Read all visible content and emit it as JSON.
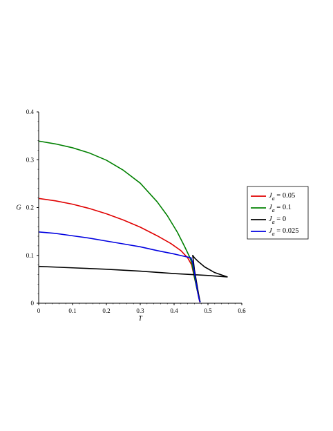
{
  "chart_data": {
    "type": "line",
    "xlabel": "T",
    "ylabel": "G",
    "xlim": [
      0,
      0.6
    ],
    "ylim": [
      0,
      0.4
    ],
    "xticks": [
      "0",
      "0.1",
      "0.2",
      "0.3",
      "0.4",
      "0.5",
      "0.6"
    ],
    "yticks": [
      "0",
      "0.1",
      "0.2",
      "0.3",
      "0.4"
    ],
    "grid": false,
    "legend_position": "right",
    "series": [
      {
        "name": "J_a = 0.05",
        "legend_var": "J",
        "legend_sub": "a",
        "legend_rest": " = 0.05",
        "color": "#e00000",
        "x": [
          0,
          0.05,
          0.1,
          0.15,
          0.2,
          0.25,
          0.3,
          0.35,
          0.39,
          0.42,
          0.44,
          0.452,
          0.458,
          0.466,
          0.472,
          0.476
        ],
        "y": [
          0.219,
          0.214,
          0.207,
          0.198,
          0.187,
          0.174,
          0.159,
          0.141,
          0.125,
          0.11,
          0.095,
          0.08,
          0.06,
          0.035,
          0.015,
          0.002
        ]
      },
      {
        "name": "J_a = 0.1",
        "legend_var": "J",
        "legend_sub": "a",
        "legend_rest": " = 0.1",
        "color": "#008000",
        "x": [
          0,
          0.05,
          0.1,
          0.15,
          0.2,
          0.25,
          0.3,
          0.35,
          0.38,
          0.41,
          0.43,
          0.445,
          0.452,
          0.456,
          0.462,
          0.468,
          0.474,
          0.477
        ],
        "y": [
          0.339,
          0.333,
          0.325,
          0.314,
          0.299,
          0.278,
          0.251,
          0.212,
          0.183,
          0.148,
          0.12,
          0.098,
          0.085,
          0.07,
          0.048,
          0.028,
          0.01,
          0.002
        ]
      },
      {
        "name": "J_a = 0",
        "legend_var": "J",
        "legend_sub": "a",
        "legend_rest": " = 0",
        "color": "#000000",
        "x": [
          0,
          0.1,
          0.2,
          0.3,
          0.4,
          0.45,
          0.5,
          0.557,
          0.52,
          0.49,
          0.47,
          0.46,
          0.455,
          0.46,
          0.466,
          0.472,
          0.477
        ],
        "y": [
          0.077,
          0.074,
          0.071,
          0.067,
          0.062,
          0.06,
          0.058,
          0.055,
          0.064,
          0.076,
          0.088,
          0.095,
          0.1,
          0.07,
          0.045,
          0.02,
          0.002
        ]
      },
      {
        "name": "J_a = 0.025",
        "legend_var": "J",
        "legend_sub": "a",
        "legend_rest": " = 0.025",
        "color": "#0000e0",
        "x": [
          0,
          0.05,
          0.1,
          0.15,
          0.2,
          0.25,
          0.3,
          0.35,
          0.4,
          0.43,
          0.45,
          0.455,
          0.46,
          0.465,
          0.47,
          0.474,
          0.477
        ],
        "y": [
          0.149,
          0.146,
          0.141,
          0.136,
          0.13,
          0.124,
          0.118,
          0.11,
          0.103,
          0.098,
          0.095,
          0.085,
          0.065,
          0.043,
          0.022,
          0.008,
          0.002
        ]
      }
    ]
  }
}
